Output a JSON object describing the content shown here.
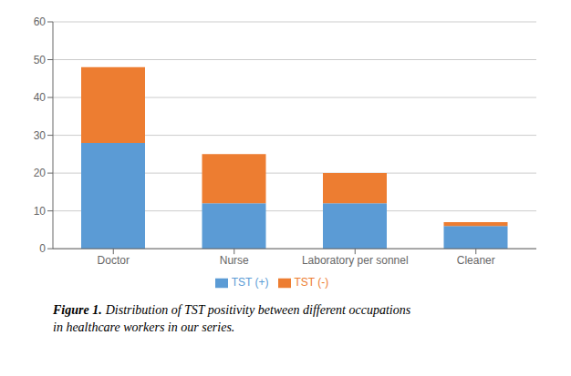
{
  "chart_data": {
    "type": "bar",
    "stacked": true,
    "categories": [
      "Doctor",
      "Nurse",
      "Laboratory per sonnel",
      "Cleaner"
    ],
    "series": [
      {
        "name": "TST (+)",
        "color": "#5B9BD5",
        "values": [
          28,
          12,
          12,
          6
        ]
      },
      {
        "name": "TST (-)",
        "color": "#ED7D31",
        "values": [
          20,
          13,
          8,
          1
        ]
      }
    ],
    "ylim": [
      0,
      60
    ],
    "yticks": [
      0,
      10,
      20,
      30,
      40,
      50,
      60
    ],
    "grid": true,
    "legend": "bottom",
    "annotations": [
      "Figure 1.",
      "Distribution of TST positivity between different occupations\nin healthcare workers in our series."
    ]
  }
}
